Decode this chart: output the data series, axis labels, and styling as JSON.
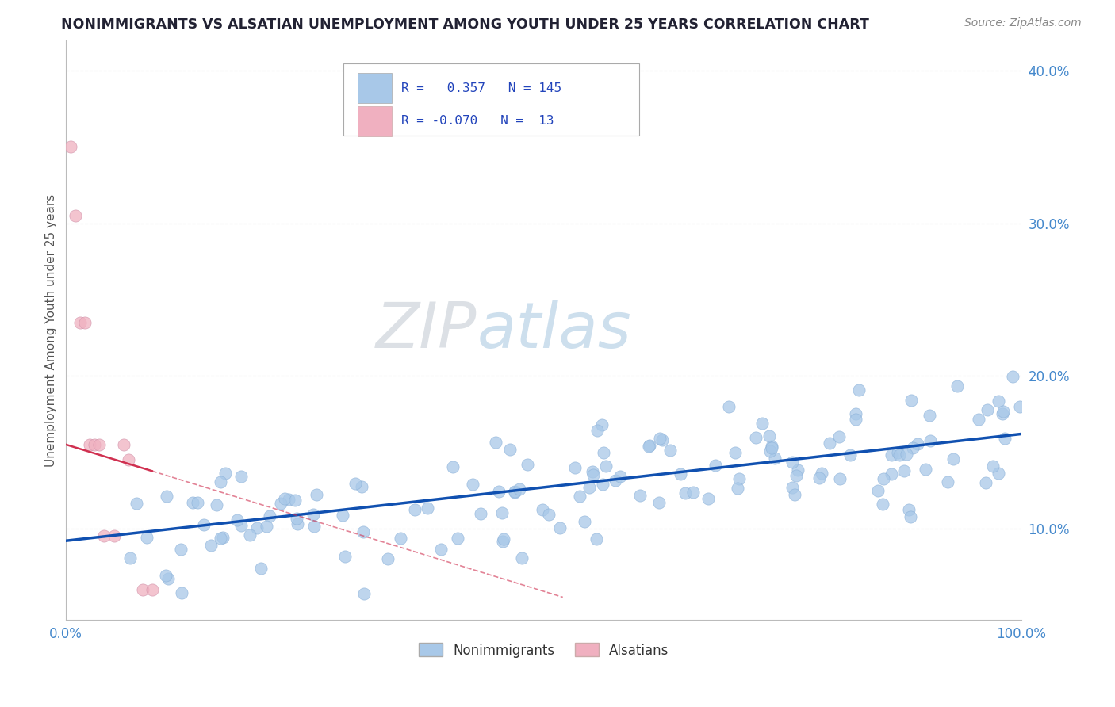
{
  "title": "NONIMMIGRANTS VS ALSATIAN UNEMPLOYMENT AMONG YOUTH UNDER 25 YEARS CORRELATION CHART",
  "source": "Source: ZipAtlas.com",
  "ylabel": "Unemployment Among Youth under 25 years",
  "xlim": [
    0.0,
    1.0
  ],
  "ylim": [
    0.04,
    0.42
  ],
  "yticks": [
    0.1,
    0.2,
    0.3,
    0.4
  ],
  "ytick_labels": [
    "10.0%",
    "20.0%",
    "30.0%",
    "40.0%"
  ],
  "xticks": [
    0.0,
    1.0
  ],
  "xtick_labels": [
    "0.0%",
    "100.0%"
  ],
  "legend_R1": "0.357",
  "legend_N1": "145",
  "legend_R2": "-0.070",
  "legend_N2": "13",
  "blue_dot_color": "#a8c8e8",
  "pink_dot_color": "#f0b0c0",
  "blue_line_color": "#1050b0",
  "pink_line_color": "#d03050",
  "watermark_zip": "ZIP",
  "watermark_atlas": "atlas",
  "background_color": "#ffffff",
  "grid_color": "#cccccc",
  "blue_trend_y_start": 0.092,
  "blue_trend_y_end": 0.162,
  "pink_trend_y_start": 0.155,
  "pink_trend_y_end": 0.055,
  "pink_trend_x_end": 0.52,
  "title_color": "#222233",
  "source_color": "#888888",
  "ylabel_color": "#555555",
  "tick_color": "#4488cc",
  "legend_text_color": "#2244bb"
}
